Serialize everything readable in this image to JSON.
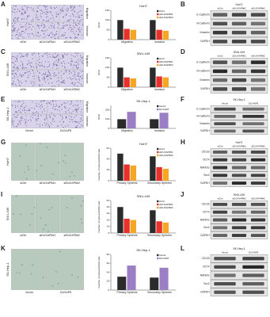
{
  "letters": [
    "A",
    "B",
    "C",
    "D",
    "E",
    "F",
    "G",
    "H",
    "I",
    "J",
    "K",
    "L"
  ],
  "chart_data": [
    {
      "type": "bar",
      "title": "HuH7",
      "ylabel": "%Ctrl",
      "categories": [
        "Migration",
        "Invasion"
      ],
      "series": [
        {
          "name": "siCtrl",
          "color": "#2b2b2b",
          "values": [
            100,
            100
          ]
        },
        {
          "name": "siDUXAP8#1",
          "color": "#e8312a",
          "values": [
            55,
            50
          ]
        },
        {
          "name": "siDUXAP8#2",
          "color": "#f5a623",
          "values": [
            50,
            45
          ]
        }
      ],
      "ylim": [
        0,
        150
      ],
      "yticks": [
        0,
        50,
        100,
        150
      ]
    },
    {
      "type": "bar",
      "title": "SNU-449",
      "ylabel": "%Ctrl",
      "categories": [
        "Migration",
        "Invasion"
      ],
      "series": [
        {
          "name": "siCtrl",
          "color": "#2b2b2b",
          "values": [
            100,
            100
          ]
        },
        {
          "name": "siDUXAP8#1",
          "color": "#e8312a",
          "values": [
            50,
            55
          ]
        },
        {
          "name": "siDUXAP8#2",
          "color": "#f5a623",
          "values": [
            45,
            50
          ]
        }
      ],
      "ylim": [
        0,
        150
      ],
      "yticks": [
        0,
        50,
        100,
        150
      ]
    },
    {
      "type": "bar",
      "title": "SK-Hep-1",
      "ylabel": "%Ctrl",
      "categories": [
        "Migration",
        "Invasion"
      ],
      "series": [
        {
          "name": "Vector",
          "color": "#2b2b2b",
          "values": [
            100,
            100
          ]
        },
        {
          "name": "DUXAP8",
          "color": "#9b7fc4",
          "values": [
            180,
            170
          ]
        }
      ],
      "ylim": [
        0,
        250
      ],
      "yticks": [
        0,
        100,
        200
      ]
    },
    {
      "type": "bar",
      "title": "HuH7",
      "ylabel": "Number of spheres/1000 cells",
      "categories": [
        "Primary Spheres",
        "Secondary Spheres"
      ],
      "series": [
        {
          "name": "siCtrl",
          "color": "#2b2b2b",
          "values": [
            50,
            45
          ]
        },
        {
          "name": "siDUXAP8#1",
          "color": "#e8312a",
          "values": [
            30,
            25
          ]
        },
        {
          "name": "siDUXAP8#2",
          "color": "#f5a623",
          "values": [
            28,
            22
          ]
        }
      ],
      "ylim": [
        0,
        60
      ],
      "yticks": [
        0,
        20,
        40,
        60
      ]
    },
    {
      "type": "bar",
      "title": "SNU-449",
      "ylabel": "Number of spheres/1000 cells",
      "categories": [
        "Primary Spheres",
        "Secondary Spheres"
      ],
      "series": [
        {
          "name": "siCtrl",
          "color": "#2b2b2b",
          "values": [
            40,
            35
          ]
        },
        {
          "name": "siDUXAP8#1",
          "color": "#e8312a",
          "values": [
            22,
            18
          ]
        },
        {
          "name": "siDUXAP8#2",
          "color": "#f5a623",
          "values": [
            20,
            16
          ]
        }
      ],
      "ylim": [
        0,
        50
      ],
      "yticks": [
        0,
        10,
        20,
        30,
        40,
        50
      ]
    },
    {
      "type": "bar",
      "title": "SK-Hep-1",
      "ylabel": "Number of spheres/1000 cells",
      "categories": [
        "Primary Spheres",
        "Secondary Spheres"
      ],
      "series": [
        {
          "name": "Vector",
          "color": "#2b2b2b",
          "values": [
            30,
            28
          ]
        },
        {
          "name": "DUXAP8",
          "color": "#9b7fc4",
          "values": [
            55,
            50
          ]
        }
      ],
      "ylim": [
        0,
        80
      ],
      "yticks": [
        0,
        20,
        40,
        60,
        80
      ]
    }
  ],
  "images": [
    {
      "cell_line": "HuH7",
      "lanes": [
        "siCtrl",
        "siDUXAP8#1",
        "siDUXAP8#2"
      ],
      "assays": [
        "Migration",
        "Invasion"
      ]
    },
    {
      "cell_line": "SNU-449",
      "lanes": [
        "siCtrl",
        "siDUXAP8#1",
        "siDUXAP8#2"
      ],
      "assays": [
        "Migration",
        "Invasion"
      ]
    },
    {
      "cell_line": "SK-Hep-1",
      "lanes": [
        "Vector",
        "DUXAP8"
      ],
      "assays": [
        "Migration",
        "Invasion"
      ]
    },
    {
      "cell_line": "HuH7",
      "lanes": [
        "siCtrl",
        "siDUXAP8#1",
        "siDUXAP8#2"
      ]
    },
    {
      "cell_line": "SNU-449",
      "lanes": [
        "siCtrl",
        "siDUXAP8#1",
        "siDUXAP8#2"
      ]
    },
    {
      "cell_line": "SK-Hep-1",
      "lanes": [
        "Vector",
        "DUXAP8"
      ]
    }
  ],
  "blots": [
    {
      "title": "HuH7",
      "lanes": [
        "siCtrl",
        "siDUXAP8#1",
        "siDUXAP8#2"
      ],
      "proteins": [
        "E-Cadherin",
        "N-Cadherin",
        "Vimentin",
        "GAPDH"
      ]
    },
    {
      "title": "SNU-449",
      "lanes": [
        "siCtrl",
        "siDUXAP8#1",
        "siDUXAP8#2"
      ],
      "proteins": [
        "E-Cadherin",
        "N-Cadherin",
        "Vimentin",
        "GAPDH"
      ]
    },
    {
      "title": "SK-Hep-1",
      "lanes": [
        "Vector",
        "DUXAP8"
      ],
      "proteins": [
        "E-Cadherin",
        "N-Cadherin",
        "Vimentin",
        "GAPDH"
      ]
    },
    {
      "title": "HuH7",
      "lanes": [
        "siCtrl",
        "siDUXAP8#1",
        "siDUXAP8#2"
      ],
      "proteins": [
        "CD133",
        "OCT4",
        "NANOG",
        "Sox2",
        "GAPDH"
      ]
    },
    {
      "title": "SNU-449",
      "lanes": [
        "siCtrl",
        "siDUXAP8#1",
        "siDUXAP8#2"
      ],
      "proteins": [
        "CD133",
        "OCT4",
        "NANOG",
        "Sox2",
        "GAPDH"
      ]
    },
    {
      "title": "SK-Hep-1",
      "lanes": [
        "Vector",
        "DUXAP8"
      ],
      "proteins": [
        "CD133",
        "OCT4",
        "NANOG",
        "Sox2",
        "GAPDH"
      ]
    }
  ]
}
